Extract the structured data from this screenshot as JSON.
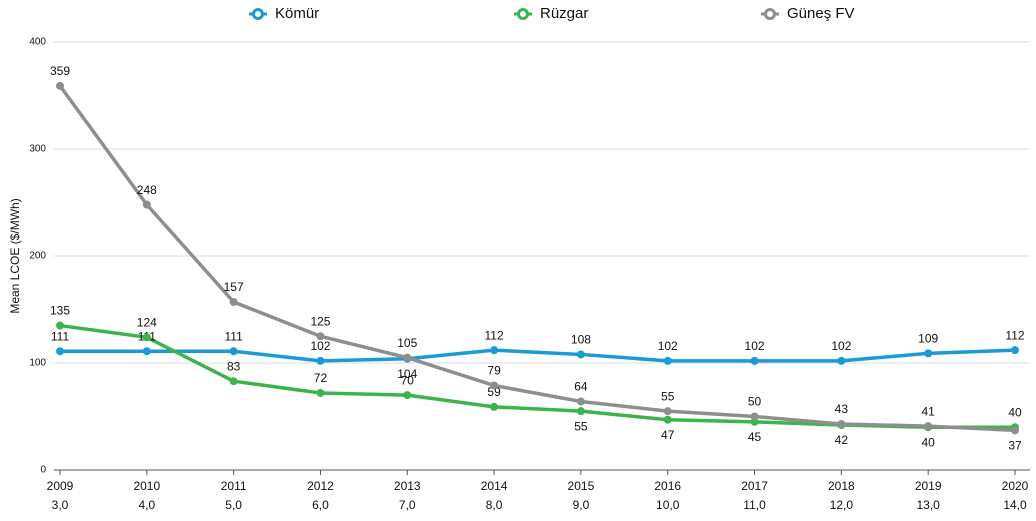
{
  "chart_data": {
    "type": "line",
    "categories": [
      "2009",
      "2010",
      "2011",
      "2012",
      "2013",
      "2014",
      "2015",
      "2016",
      "2017",
      "2018",
      "2019",
      "2020"
    ],
    "x_sublabels": [
      "3,0",
      "4,0",
      "5,0",
      "6,0",
      "7,0",
      "8,0",
      "9,0",
      "10,0",
      "11,0",
      "12,0",
      "13,0",
      "14,0"
    ],
    "y_label": "Mean LCOE ($/MWh)",
    "ylim": [
      0,
      400
    ],
    "yticks": [
      0,
      100,
      200,
      300,
      400
    ],
    "grid": true,
    "legend": "top",
    "series": [
      {
        "name": "Kömür",
        "color": "#1a9ad6",
        "values": [
          111,
          111,
          111,
          102,
          104,
          112,
          108,
          102,
          102,
          102,
          109,
          112
        ]
      },
      {
        "name": "Rüzgar",
        "color": "#3cb44b",
        "values": [
          135,
          124,
          83,
          72,
          70,
          59,
          55,
          47,
          45,
          42,
          40,
          40
        ]
      },
      {
        "name": "Güneş FV",
        "color": "#8e8e8e",
        "values": [
          359,
          248,
          157,
          125,
          105,
          79,
          64,
          55,
          50,
          43,
          41,
          37
        ]
      }
    ]
  }
}
